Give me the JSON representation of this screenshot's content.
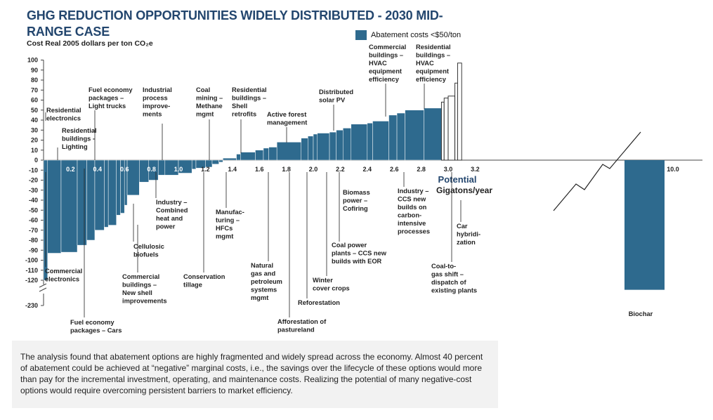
{
  "chart_data": {
    "type": "bar",
    "title": "GHG REDUCTION OPPORTUNITIES WIDELY DISTRIBUTED - 2030 MID-RANGE CASE",
    "ylabel": "Cost Real 2005 dollars per ton CO₂e",
    "xlabel_lines": [
      "Potential",
      "Gigatons/year"
    ],
    "legend": "Abatement costs <$50/ton",
    "xlim": [
      0,
      10.0
    ],
    "ylim": [
      -230,
      100
    ],
    "y_ticks": [
      "100",
      "90",
      "80",
      "70",
      "60",
      "50",
      "40",
      "30",
      "20",
      "10",
      "0",
      "-10",
      "-20",
      "-30",
      "-40",
      "-50",
      "-60",
      "-70",
      "-80",
      "-90",
      "-100",
      "-110",
      "-120",
      "-230"
    ],
    "x_ticks": [
      "0.2",
      "0.4",
      "0.6",
      "0.8",
      "1.0",
      "1.2",
      "1.4",
      "1.6",
      "1.8",
      "2.0",
      "2.2",
      "2.4",
      "2.6",
      "2.8",
      "3.0",
      "3.2"
    ],
    "x_max_label": "10.0",
    "biochar": {
      "label": "Biochar",
      "x0": 4.35,
      "x1": 4.65,
      "value": -160
    },
    "bars": [
      {
        "x0": 0.0,
        "x1": 0.03,
        "value": -120
      },
      {
        "x0": 0.03,
        "x1": 0.13,
        "value": -93
      },
      {
        "x0": 0.13,
        "x1": 0.25,
        "value": -92
      },
      {
        "x0": 0.25,
        "x1": 0.32,
        "value": -85
      },
      {
        "x0": 0.32,
        "x1": 0.38,
        "value": -80
      },
      {
        "x0": 0.38,
        "x1": 0.45,
        "value": -70
      },
      {
        "x0": 0.45,
        "x1": 0.48,
        "value": -67
      },
      {
        "x0": 0.48,
        "x1": 0.54,
        "value": -65
      },
      {
        "x0": 0.54,
        "x1": 0.57,
        "value": -55
      },
      {
        "x0": 0.57,
        "x1": 0.6,
        "value": -53
      },
      {
        "x0": 0.6,
        "x1": 0.62,
        "value": -45
      },
      {
        "x0": 0.62,
        "x1": 0.71,
        "value": -35
      },
      {
        "x0": 0.71,
        "x1": 0.78,
        "value": -22
      },
      {
        "x0": 0.78,
        "x1": 0.85,
        "value": -20
      },
      {
        "x0": 0.85,
        "x1": 0.9,
        "value": -15
      },
      {
        "x0": 0.9,
        "x1": 1.0,
        "value": -15
      },
      {
        "x0": 1.0,
        "x1": 1.1,
        "value": -13
      },
      {
        "x0": 1.1,
        "x1": 1.13,
        "value": -9
      },
      {
        "x0": 1.13,
        "x1": 1.2,
        "value": -8
      },
      {
        "x0": 1.2,
        "x1": 1.25,
        "value": -7
      },
      {
        "x0": 1.25,
        "x1": 1.3,
        "value": -4
      },
      {
        "x0": 1.3,
        "x1": 1.33,
        "value": -2
      },
      {
        "x0": 1.33,
        "x1": 1.43,
        "value": 2
      },
      {
        "x0": 1.43,
        "x1": 1.46,
        "value": 6
      },
      {
        "x0": 1.46,
        "x1": 1.57,
        "value": 8
      },
      {
        "x0": 1.57,
        "x1": 1.63,
        "value": 10
      },
      {
        "x0": 1.63,
        "x1": 1.67,
        "value": 12
      },
      {
        "x0": 1.67,
        "x1": 1.73,
        "value": 13
      },
      {
        "x0": 1.73,
        "x1": 1.91,
        "value": 18
      },
      {
        "x0": 1.91,
        "x1": 1.96,
        "value": 22
      },
      {
        "x0": 1.96,
        "x1": 2.0,
        "value": 24
      },
      {
        "x0": 2.0,
        "x1": 2.03,
        "value": 26
      },
      {
        "x0": 2.03,
        "x1": 2.12,
        "value": 27
      },
      {
        "x0": 2.12,
        "x1": 2.17,
        "value": 28
      },
      {
        "x0": 2.17,
        "x1": 2.22,
        "value": 30
      },
      {
        "x0": 2.22,
        "x1": 2.28,
        "value": 32
      },
      {
        "x0": 2.28,
        "x1": 2.4,
        "value": 36
      },
      {
        "x0": 2.4,
        "x1": 2.44,
        "value": 37
      },
      {
        "x0": 2.44,
        "x1": 2.56,
        "value": 39
      },
      {
        "x0": 2.56,
        "x1": 2.62,
        "value": 45
      },
      {
        "x0": 2.62,
        "x1": 2.68,
        "value": 47
      },
      {
        "x0": 2.68,
        "x1": 2.82,
        "value": 50
      },
      {
        "x0": 2.82,
        "x1": 2.95,
        "value": 52
      }
    ],
    "bars_outline": [
      {
        "x0": 2.95,
        "x1": 2.97,
        "value": 58
      },
      {
        "x0": 2.97,
        "x1": 3.0,
        "value": 62
      },
      {
        "x0": 3.0,
        "x1": 3.05,
        "value": 64
      },
      {
        "x0": 3.05,
        "x1": 3.07,
        "value": 77
      },
      {
        "x0": 3.07,
        "x1": 3.1,
        "value": 97
      }
    ],
    "annotations": [
      "Residential electronics",
      "Residential buildings - Lighting",
      "Fuel economy packages – Light trucks",
      "Industrial process improve-ments",
      "Coal mining – Methane mgmt",
      "Residential buildings – Shell retrofits",
      "Active forest management",
      "Distributed solar PV",
      "Commercial buildings – HVAC equipment efficiency",
      "Residential buildings – HVAC equipment efficiency",
      "Commercial electronics",
      "Fuel economy packages – Cars",
      "Commercial buildings – New shell improvements",
      "Cellulosic biofuels",
      "Industry – Combined heat and power",
      "Conservation tillage",
      "Manufac-turing – HFCs mgmt",
      "Natural gas and petroleum systems mgmt",
      "Afforestation of pastureland",
      "Reforestation",
      "Winter cover crops",
      "Biomass power – Cofiring",
      "Coal power plants – CCS new builds with EOR",
      "Industry – CCS new builds on carbon-intensive processes",
      "Coal-to-gas shift – dispatch of existing plants",
      "Car hybridi-zation"
    ]
  },
  "note": "The analysis found that abatement options are highly fragmented and widely spread across the economy. Almost 40 percent of abatement could be achieved at “negative” marginal costs, i.e., the savings over the lifecycle of these options would more than pay for the incremental investment, operating, and maintenance costs. Realizing the potential of many negative-cost options would require overcoming persistent barriers to market efficiency.",
  "colors": {
    "bar": "#2e6a8e",
    "title": "#23466e",
    "potential": "#23466e",
    "note_bg": "#f2f2f2"
  }
}
